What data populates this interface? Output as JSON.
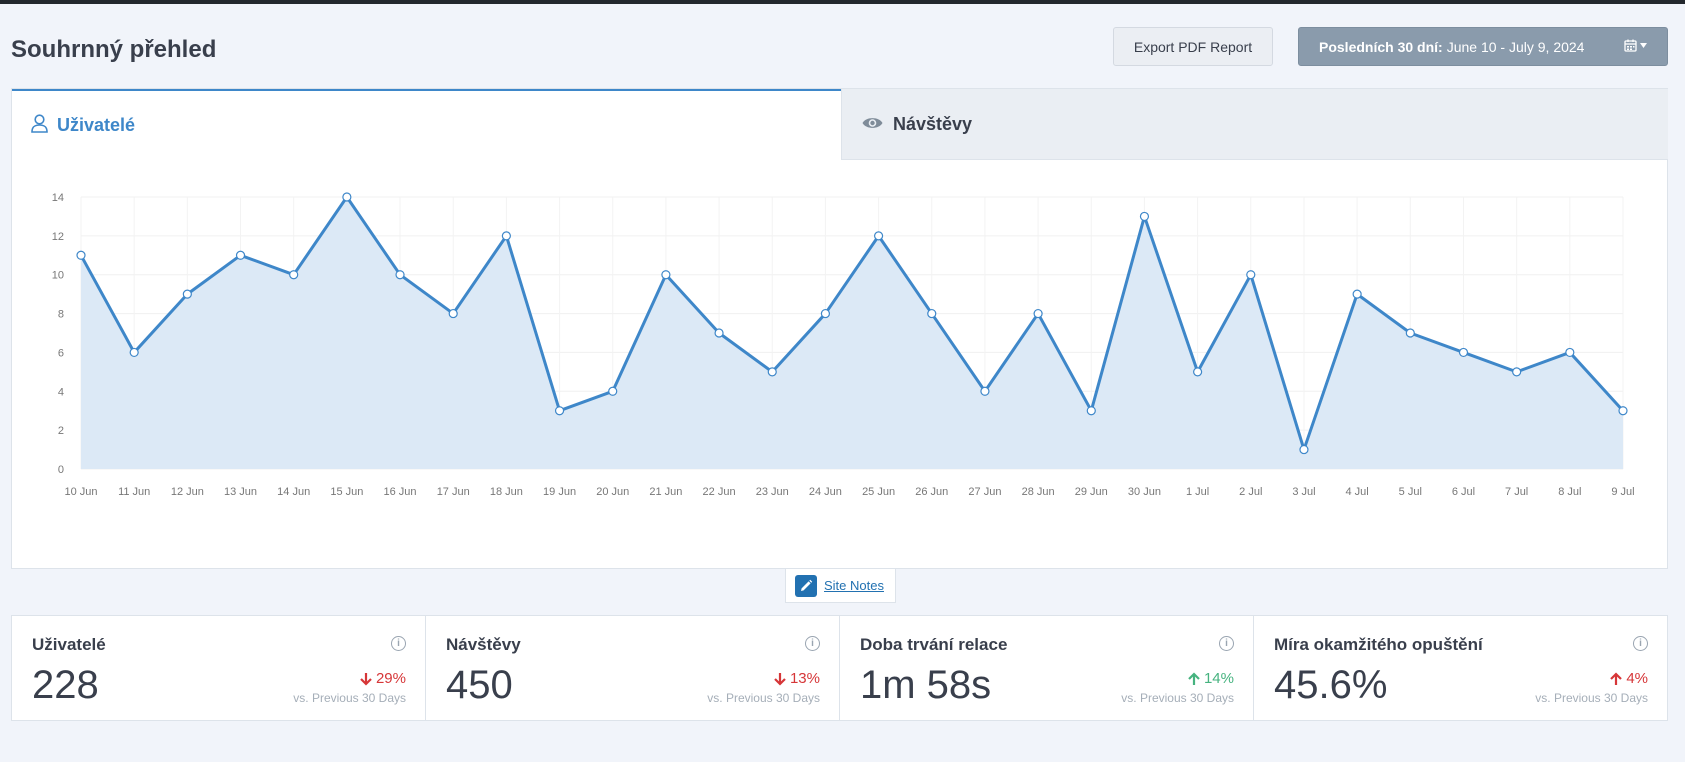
{
  "page": {
    "title": "Souhrnný přehled",
    "export_label": "Export PDF Report",
    "date_range_bold": "Posledních 30 dní:",
    "date_range_value": "June 10 - July 9, 2024",
    "colors": {
      "accent": "#3e87c9",
      "down": "#d63638",
      "up": "#46b37f",
      "date_button": "#8a9bac"
    }
  },
  "tabs": [
    {
      "label": "Uživatelé",
      "icon": "user-icon",
      "active": true
    },
    {
      "label": "Návštěvy",
      "icon": "eye-icon",
      "active": false
    }
  ],
  "site_notes": {
    "label": "Site Notes",
    "icon": "pencil-icon"
  },
  "stats": [
    {
      "label": "Uživatelé",
      "value": "228",
      "change": "29%",
      "direction": "down",
      "compare": "vs. Previous 30 Days"
    },
    {
      "label": "Návštěvy",
      "value": "450",
      "change": "13%",
      "direction": "down",
      "compare": "vs. Previous 30 Days"
    },
    {
      "label": "Doba trvání relace",
      "value": "1m 58s",
      "change": "14%",
      "direction": "up-good",
      "compare": "vs. Previous 30 Days"
    },
    {
      "label": "Míra okamžitého opuštění",
      "value": "45.6%",
      "change": "4%",
      "direction": "up-bad",
      "compare": "vs. Previous 30 Days"
    }
  ],
  "chart_data": {
    "type": "area",
    "categories": [
      "10 Jun",
      "11 Jun",
      "12 Jun",
      "13 Jun",
      "14 Jun",
      "15 Jun",
      "16 Jun",
      "17 Jun",
      "18 Jun",
      "19 Jun",
      "20 Jun",
      "21 Jun",
      "22 Jun",
      "23 Jun",
      "24 Jun",
      "25 Jun",
      "26 Jun",
      "27 Jun",
      "28 Jun",
      "29 Jun",
      "30 Jun",
      "1 Jul",
      "2 Jul",
      "3 Jul",
      "4 Jul",
      "5 Jul",
      "6 Jul",
      "7 Jul",
      "8 Jul",
      "9 Jul"
    ],
    "values": [
      11,
      6,
      9,
      11,
      10,
      14,
      10,
      8,
      12,
      3,
      4,
      10,
      7,
      5,
      8,
      12,
      8,
      4,
      8,
      3,
      13,
      5,
      10,
      1,
      9,
      7,
      6,
      5,
      6,
      3
    ],
    "ylim": [
      0,
      14
    ],
    "yticks": [
      0,
      2,
      4,
      6,
      8,
      10,
      12,
      14
    ],
    "grid": true,
    "line_color": "#3e87c9",
    "fill_color": "#dce9f6"
  }
}
